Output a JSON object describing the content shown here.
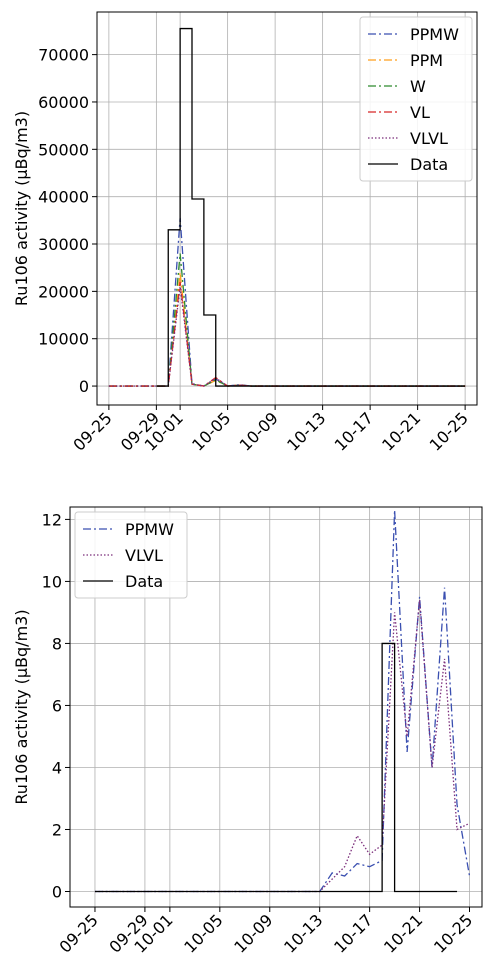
{
  "chart_data": [
    {
      "type": "line",
      "ylabel": "Ru106 activity (μBq/m3)",
      "grid": true,
      "legend": "upper right",
      "drawstyle_data": "steps-post",
      "x": [
        "09-25",
        "09-26",
        "09-27",
        "09-28",
        "09-29",
        "09-30",
        "10-01",
        "10-02",
        "10-03",
        "10-04",
        "10-05",
        "10-06",
        "10-07",
        "10-08",
        "10-09",
        "10-10",
        "10-11",
        "10-12",
        "10-13",
        "10-14",
        "10-15",
        "10-16",
        "10-17",
        "10-18",
        "10-19",
        "10-20",
        "10-21",
        "10-22",
        "10-23",
        "10-24",
        "10-25"
      ],
      "xlim": [
        "09-24",
        "10-26"
      ],
      "xticks": [
        "09-25",
        "09-29",
        "10-01",
        "10-05",
        "10-09",
        "10-13",
        "10-17",
        "10-21",
        "10-25"
      ],
      "ylim": [
        -4000,
        79000
      ],
      "yticks": [
        0,
        10000,
        20000,
        30000,
        40000,
        50000,
        60000,
        70000
      ],
      "series": [
        {
          "name": "PPMW",
          "color": "#3a4fb0",
          "linestyle": "dashdot",
          "values": [
            0,
            0,
            0,
            0,
            0,
            0,
            35500,
            500,
            0,
            1500,
            0,
            300,
            0,
            0,
            0,
            0,
            0,
            0,
            0,
            0,
            0,
            0,
            0,
            0,
            0,
            0,
            0,
            0,
            0,
            0,
            0
          ]
        },
        {
          "name": "PPM",
          "color": "#ff9f1c",
          "linestyle": "dashdot",
          "values": [
            0,
            0,
            0,
            0,
            0,
            0,
            24000,
            400,
            0,
            1200,
            0,
            200,
            0,
            0,
            0,
            0,
            0,
            0,
            0,
            0,
            0,
            0,
            0,
            0,
            0,
            0,
            0,
            0,
            0,
            0,
            0
          ]
        },
        {
          "name": "W",
          "color": "#2e8b2e",
          "linestyle": "dashdot",
          "values": [
            0,
            0,
            0,
            0,
            0,
            0,
            28000,
            400,
            0,
            1300,
            0,
            200,
            0,
            0,
            0,
            0,
            0,
            0,
            0,
            0,
            0,
            0,
            0,
            0,
            0,
            0,
            0,
            0,
            0,
            0,
            0
          ]
        },
        {
          "name": "VL",
          "color": "#d62728",
          "linestyle": "dashdot",
          "values": [
            0,
            0,
            0,
            0,
            0,
            0,
            22000,
            400,
            0,
            1800,
            0,
            200,
            0,
            0,
            0,
            0,
            0,
            0,
            0,
            0,
            0,
            0,
            0,
            0,
            0,
            0,
            0,
            0,
            0,
            0,
            0
          ]
        },
        {
          "name": "VLVL",
          "color": "#7b2d7b",
          "linestyle": "dotted",
          "values": [
            0,
            0,
            0,
            0,
            0,
            0,
            21000,
            400,
            0,
            1700,
            0,
            200,
            0,
            0,
            0,
            0,
            0,
            0,
            0,
            0,
            0,
            0,
            0,
            0,
            0,
            0,
            0,
            0,
            0,
            0,
            0
          ]
        },
        {
          "name": "Data",
          "color": "#000000",
          "linestyle": "solid",
          "steps": true,
          "values": [
            null,
            null,
            null,
            null,
            0,
            33000,
            75500,
            39500,
            15000,
            0,
            0,
            0,
            0,
            0,
            0,
            0,
            0,
            0,
            0,
            0,
            0,
            0,
            0,
            0,
            0,
            0,
            0,
            0,
            0,
            0,
            0
          ]
        }
      ]
    },
    {
      "type": "line",
      "ylabel": "Ru106 activity (μBq/m3)",
      "grid": true,
      "legend": "upper left",
      "x": [
        "09-25",
        "09-26",
        "09-27",
        "09-28",
        "09-29",
        "09-30",
        "10-01",
        "10-02",
        "10-03",
        "10-04",
        "10-05",
        "10-06",
        "10-07",
        "10-08",
        "10-09",
        "10-10",
        "10-11",
        "10-12",
        "10-13",
        "10-14",
        "10-15",
        "10-16",
        "10-17",
        "10-18",
        "10-19",
        "10-20",
        "10-21",
        "10-22",
        "10-23",
        "10-24",
        "10-25"
      ],
      "xlim": [
        "09-23",
        "10-26"
      ],
      "xticks": [
        "09-25",
        "09-29",
        "10-01",
        "10-05",
        "10-09",
        "10-13",
        "10-17",
        "10-21",
        "10-25"
      ],
      "ylim": [
        -0.5,
        12.4
      ],
      "yticks": [
        0,
        2,
        4,
        6,
        8,
        10,
        12
      ],
      "series": [
        {
          "name": "PPMW",
          "color": "#3a4fb0",
          "linestyle": "dashdot",
          "values": [
            0,
            0,
            0,
            0,
            0,
            0,
            0,
            0,
            0,
            0,
            0,
            0,
            0,
            0,
            0,
            0,
            0,
            0,
            0,
            0.6,
            0.5,
            0.9,
            0.8,
            1.0,
            12.3,
            4.5,
            9.5,
            4.0,
            9.8,
            2.8,
            0.5
          ]
        },
        {
          "name": "VLVL",
          "color": "#7b2d7b",
          "linestyle": "dotted",
          "values": [
            0,
            0,
            0,
            0,
            0,
            0,
            0,
            0,
            0,
            0,
            0,
            0,
            0,
            0,
            0,
            0,
            0,
            0,
            0,
            0.4,
            0.8,
            1.8,
            1.2,
            1.5,
            9.0,
            5.0,
            9.4,
            4.0,
            7.5,
            2.0,
            2.2
          ]
        },
        {
          "name": "Data",
          "color": "#000000",
          "linestyle": "solid",
          "steps": true,
          "values": [
            0,
            0,
            0,
            0,
            0,
            0,
            0,
            0,
            0,
            0,
            0,
            0,
            0,
            0,
            0,
            0,
            0,
            0,
            0,
            0,
            0,
            0,
            0,
            8,
            0,
            0,
            0,
            0,
            0,
            0,
            null
          ]
        }
      ]
    }
  ]
}
